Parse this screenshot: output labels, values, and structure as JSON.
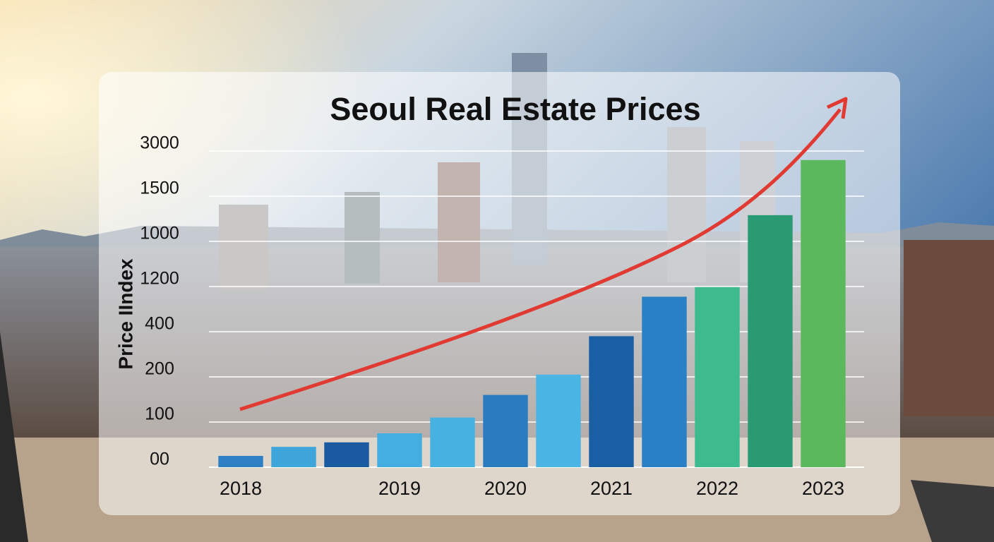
{
  "chart_data": {
    "type": "bar",
    "title": "Seoul Real Estate Prices",
    "y_label": "Price IIndex",
    "categories": [
      "2018",
      null,
      null,
      "2019",
      null,
      "2020",
      null,
      "2021",
      null,
      "2022",
      null,
      "2023"
    ],
    "values": [
      25,
      45,
      55,
      75,
      110,
      160,
      210,
      380,
      1020,
      1190,
      1290,
      2700
    ],
    "colors": [
      "#2f7fc4",
      "#3fa6dc",
      "#1a5aa0",
      "#44aee0",
      "#47b2e2",
      "#2a7cc0",
      "#4ab4e4",
      "#1a5ea3",
      "#2a80c4",
      "#3dbb8f",
      "#2a9a72",
      "#5cb85c"
    ],
    "yticks": [
      {
        "value": 0,
        "label": "00"
      },
      100,
      200,
      400,
      1200,
      1000,
      1500,
      3000
    ],
    "grid": true
  }
}
